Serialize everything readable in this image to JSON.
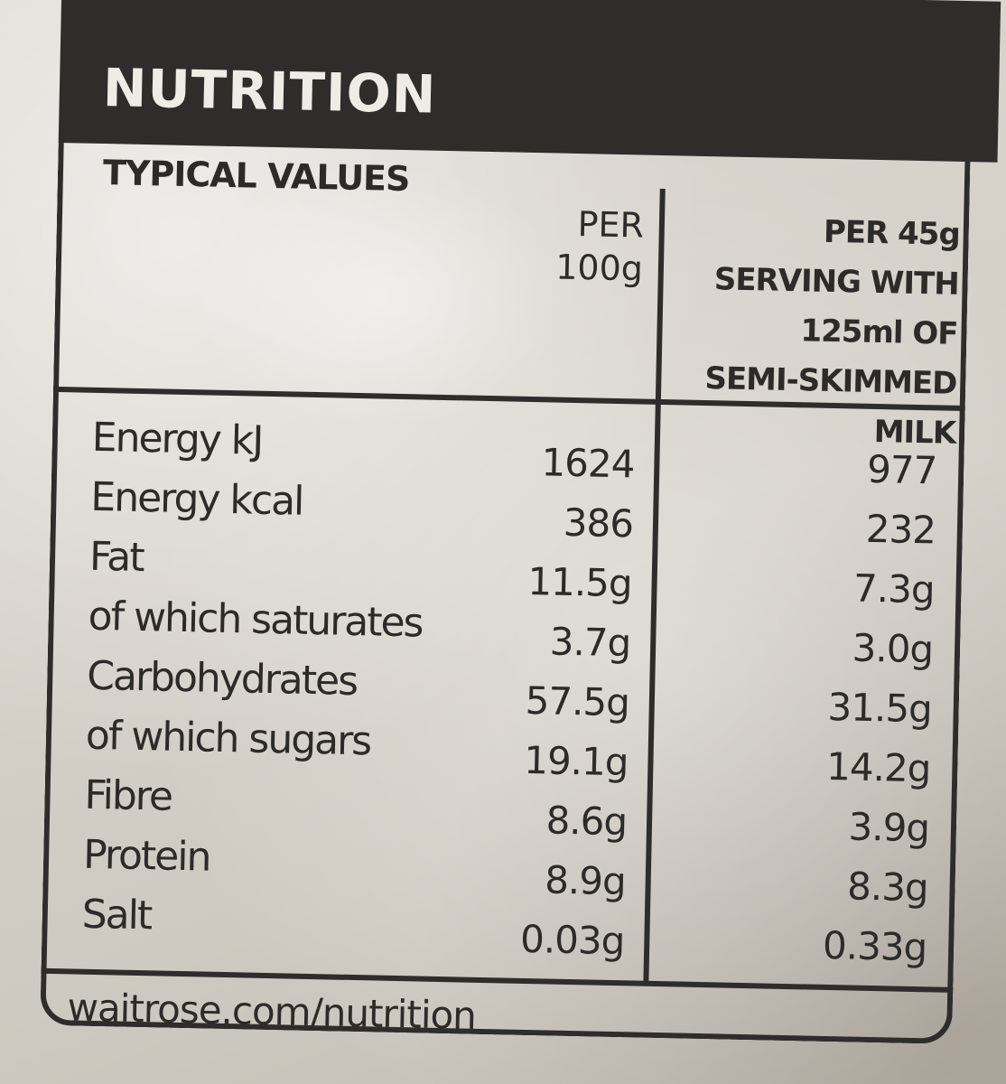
{
  "label": {
    "title": "NUTRITION",
    "typical_values": "TYPICAL VALUES",
    "col1_header": [
      "PER",
      "100g"
    ],
    "col2_header": [
      "PER 45g",
      "SERVING WITH",
      "125ml OF",
      "SEMI-SKIMMED",
      "MILK"
    ],
    "rows": [
      {
        "name": "Energy kJ",
        "per100": "1624",
        "serving": "977"
      },
      {
        "name": "Energy kcal",
        "per100": "386",
        "serving": "232"
      },
      {
        "name": "Fat",
        "per100": "11.5g",
        "serving": "7.3g"
      },
      {
        "name": "of which saturates",
        "per100": "3.7g",
        "serving": "3.0g"
      },
      {
        "name": "Carbohydrates",
        "per100": "57.5g",
        "serving": "31.5g"
      },
      {
        "name": "of which sugars",
        "per100": "19.1g",
        "serving": "14.2g"
      },
      {
        "name": "Fibre",
        "per100": "8.6g",
        "serving": "3.9g"
      },
      {
        "name": "Protein",
        "per100": "8.9g",
        "serving": "8.3g"
      },
      {
        "name": "Salt",
        "per100": "0.03g",
        "serving": "0.33g"
      }
    ],
    "footer": "waitrose.com/nutrition"
  },
  "colors": {
    "ink": "#2f2d2b",
    "packaging": "#d6d1c9",
    "title_text": "#efece6"
  }
}
